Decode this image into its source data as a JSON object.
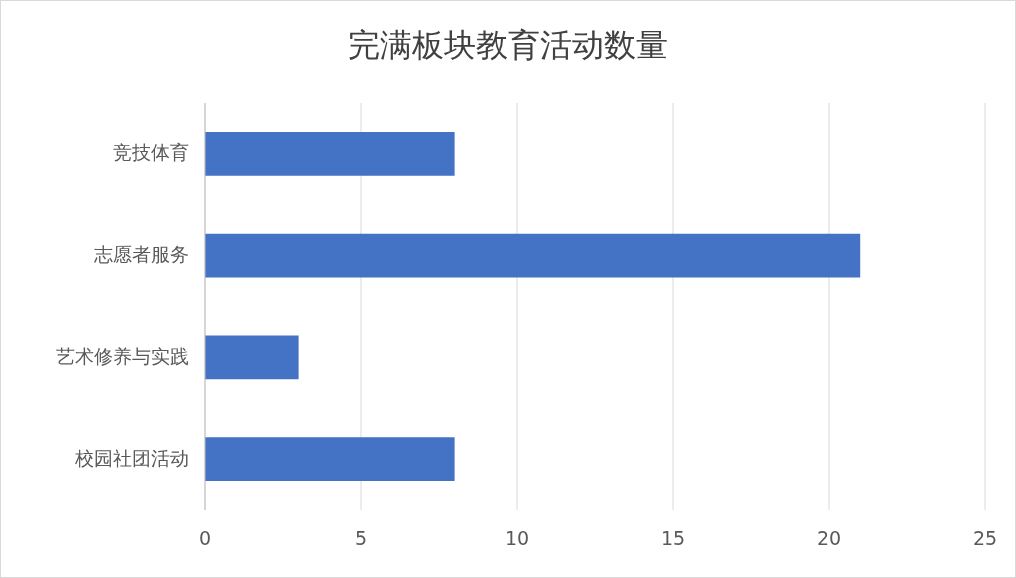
{
  "chart_data": {
    "type": "bar",
    "orientation": "horizontal",
    "title": "完满板块教育活动数量",
    "categories": [
      "竞技体育",
      "志愿者服务",
      "艺术修养与实践",
      "校园社团活动"
    ],
    "values": [
      8,
      21,
      3,
      8
    ],
    "color": "#4472c4",
    "xlim": [
      0,
      25
    ],
    "xticks": [
      0,
      5,
      10,
      15,
      20,
      25
    ],
    "grid": "x"
  }
}
